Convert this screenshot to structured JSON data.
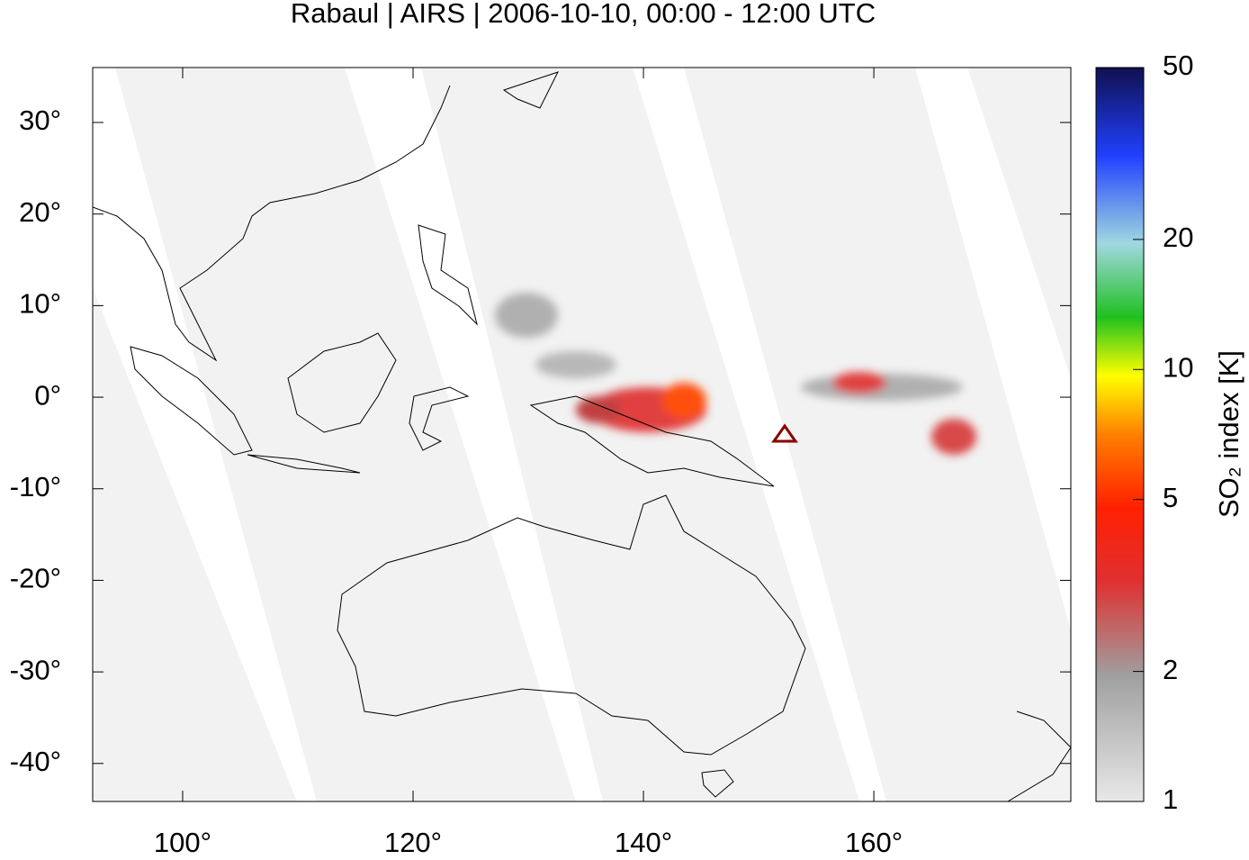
{
  "header": {
    "title": "Rabaul | AIRS | 2006-10-10, 00:00 - 12:00 UTC"
  },
  "map": {
    "xlim": [
      92.19,
      177.1
    ],
    "ylim": [
      -44.15,
      36.0
    ],
    "xticks": [
      {
        "value": 100,
        "label": "100°"
      },
      {
        "value": 120,
        "label": "120°"
      },
      {
        "value": 140,
        "label": "140°"
      },
      {
        "value": 160,
        "label": "160°"
      }
    ],
    "yticks": [
      {
        "value": 30,
        "label": "30°"
      },
      {
        "value": 20,
        "label": "20°"
      },
      {
        "value": 10,
        "label": "10°"
      },
      {
        "value": 0,
        "label": "0°"
      },
      {
        "value": -10,
        "label": "-10°"
      },
      {
        "value": -20,
        "label": "-20°"
      },
      {
        "value": -30,
        "label": "-30°"
      },
      {
        "value": -40,
        "label": "-40°"
      }
    ]
  },
  "colorbar": {
    "label": "SO₂ index [K]",
    "scale": "log",
    "lim": [
      1,
      50
    ],
    "ticks": [
      1,
      2,
      5,
      10,
      20,
      50
    ]
  }
}
